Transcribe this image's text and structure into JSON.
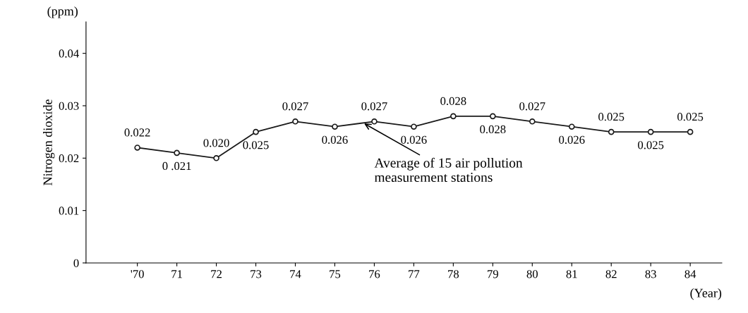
{
  "chart_data": {
    "type": "line",
    "xlabel": "(Year)",
    "ylabel": "Nitrogen dioxide",
    "categories": [
      "'70",
      "71",
      "72",
      "73",
      "74",
      "75",
      "76",
      "77",
      "78",
      "79",
      "80",
      "81",
      "82",
      "83",
      "84"
    ],
    "series": [
      {
        "color": "#1a1a1a",
        "values": [
          0.022,
          0.021,
          0.02,
          0.025,
          0.027,
          0.026,
          0.027,
          0.026,
          0.028,
          0.028,
          0.027,
          0.026,
          0.025,
          0.025,
          0.025
        ],
        "value_labels": [
          "0.022",
          "0 .021",
          "0.020",
          "0.025",
          "0.027",
          "0.026",
          "0.027",
          "0.026",
          "0.028",
          "0.028",
          "0.027",
          "0.026",
          "0.025",
          "0.025",
          "0.025"
        ]
      }
    ],
    "ylim": [
      0,
      0.046
    ],
    "yticks": [
      {
        "value": 0,
        "label": "0"
      },
      0.01,
      0.02,
      0.03,
      0.04
    ],
    "annotations": [
      "(ppm)",
      {
        "text": "Average of 15 air pollution\nmeasurement stations",
        "x": "76",
        "y": 0.0268
      }
    ],
    "marker": "circle",
    "line_style": "solid",
    "grid": false,
    "legend": false
  }
}
